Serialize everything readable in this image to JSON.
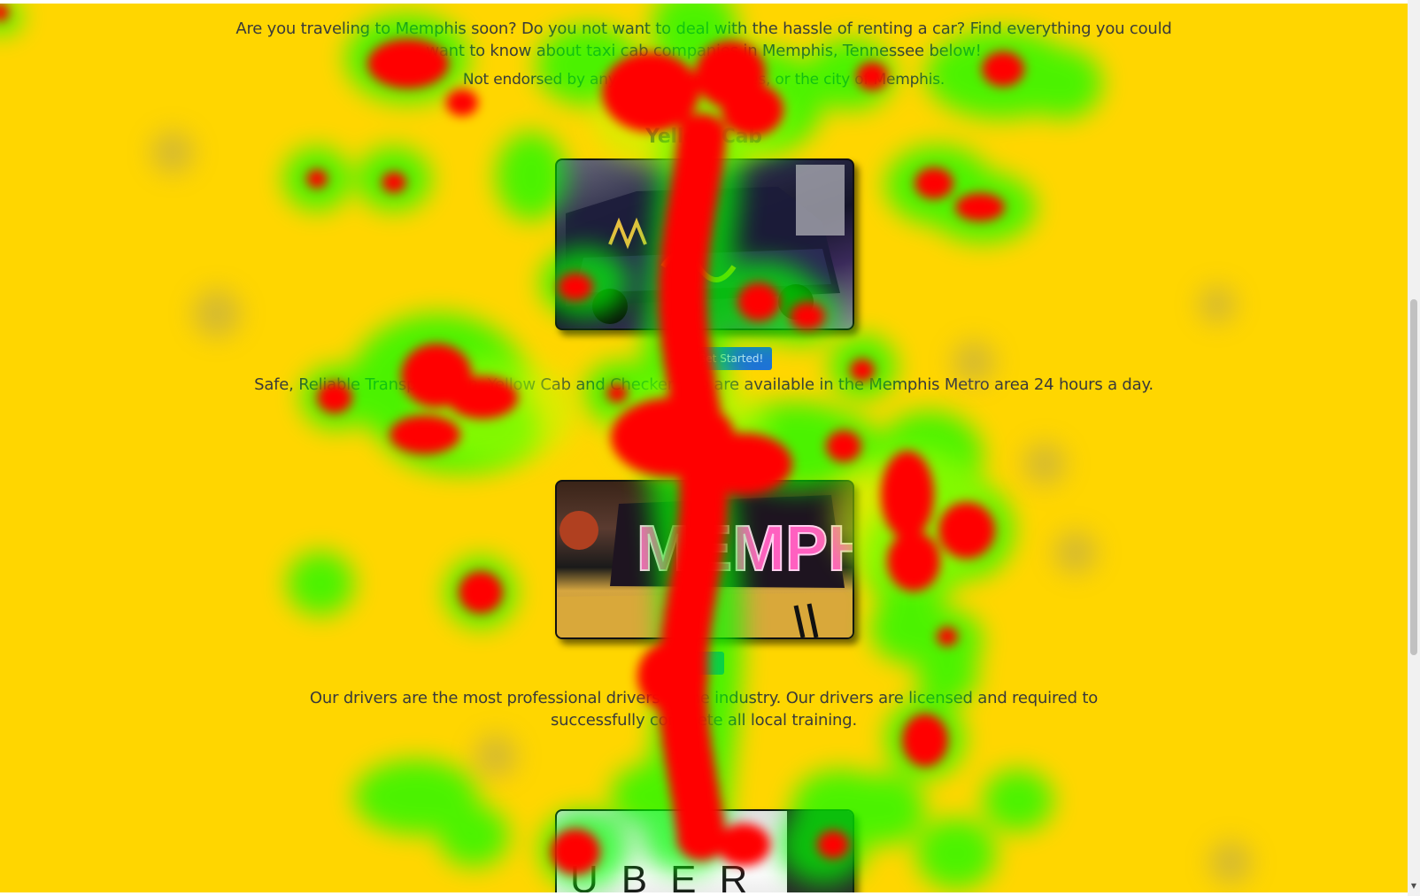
{
  "intro": {
    "line1": "Are you traveling to Memphis soon? Do you not want to deal with the hassle of renting a car? Find everything you could",
    "line2": "want to know about taxi cab companies in Memphis, Tennessee below!"
  },
  "disclaimer": "Not endorsed by any of these companies, or the city of Memphis.",
  "sections": [
    {
      "title": "Yellow Cab",
      "image_icon": "taxi-car-photo",
      "cta_label": "Get Started!",
      "description": "Safe, Reliable Transportation. Yellow Cab and Checker Cab are available in the Memphis Metro area 24 hours a day."
    },
    {
      "image_icon": "taxi-roof-sign-photo",
      "image_text": "MEMPHIS",
      "cta_label": "",
      "description": "Our drivers are the most professional drivers in the industry. Our drivers are licensed and required to successfully complete all local training."
    },
    {
      "image_icon": "uber-logo-photo",
      "image_text": "UBER"
    }
  ],
  "colors": {
    "background": "#ffd600",
    "text": "#3a3a3a",
    "button": "#1e73d6",
    "heat_hot": "#ff0000",
    "heat_warm": "#00ff00"
  },
  "overlay": {
    "type": "eye-tracking heatmap"
  }
}
